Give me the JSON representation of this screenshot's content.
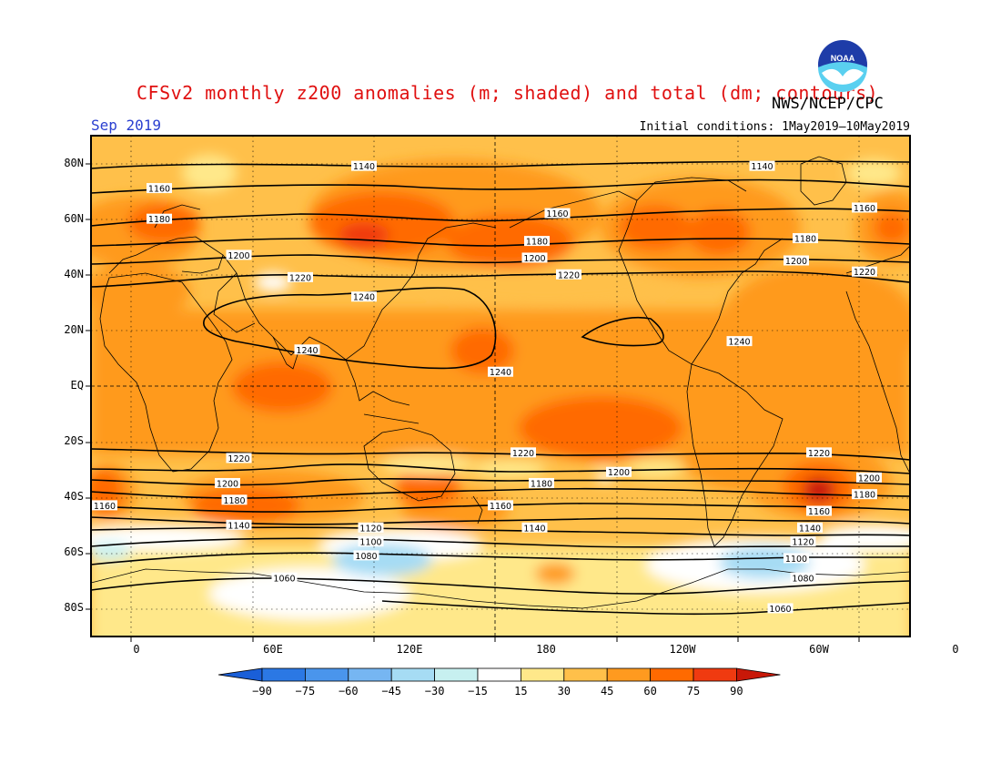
{
  "header": {
    "title": "CFSv2 monthly z200 anomalies (m; shaded) and total (dm; contours)",
    "agency": "NWS/NCEP/CPC",
    "valid_month": "Sep 2019",
    "initial_conditions": "Initial conditions: 1May2019—10May2019"
  },
  "logo": {
    "icon": "noaa-logo-icon",
    "text": "NOAA"
  },
  "axes": {
    "lat_labels": [
      "80N",
      "60N",
      "40N",
      "20N",
      "EQ",
      "20S",
      "40S",
      "60S",
      "80S"
    ],
    "lat_values": [
      80,
      60,
      40,
      20,
      0,
      -20,
      -40,
      -60,
      -80
    ],
    "lon_labels": [
      "0",
      "60E",
      "120E",
      "180",
      "120W",
      "60W",
      "0"
    ],
    "lon_values": [
      0,
      60,
      120,
      180,
      240,
      300,
      360
    ],
    "lon_range": [
      -20,
      340
    ],
    "lat_range": [
      -90,
      90
    ]
  },
  "colorbar": {
    "labels": [
      "−90",
      "−75",
      "−60",
      "−45",
      "−30",
      "−15",
      "15",
      "30",
      "45",
      "60",
      "75",
      "90"
    ],
    "colors": [
      "#1a5fd8",
      "#2b78e4",
      "#4a95ec",
      "#76b6f2",
      "#a6dcf4",
      "#c7f0f0",
      "#ffffff",
      "#ffe88a",
      "#ffc04a",
      "#ff9a1f",
      "#ff6a00",
      "#f03a10",
      "#c81808"
    ]
  },
  "contour_labels": [
    {
      "text": "1140",
      "lon": 100,
      "lat": 79
    },
    {
      "text": "1140",
      "lon": 275,
      "lat": 79
    },
    {
      "text": "1160",
      "lon": 10,
      "lat": 71
    },
    {
      "text": "1160",
      "lon": 185,
      "lat": 62
    },
    {
      "text": "1160",
      "lon": 320,
      "lat": 64
    },
    {
      "text": "1180",
      "lon": 10,
      "lat": 60
    },
    {
      "text": "1180",
      "lon": 176,
      "lat": 52
    },
    {
      "text": "1180",
      "lon": 294,
      "lat": 53
    },
    {
      "text": "1200",
      "lon": 45,
      "lat": 47
    },
    {
      "text": "1200",
      "lon": 175,
      "lat": 46
    },
    {
      "text": "1200",
      "lon": 290,
      "lat": 45
    },
    {
      "text": "1220",
      "lon": 72,
      "lat": 39
    },
    {
      "text": "1220",
      "lon": 190,
      "lat": 40
    },
    {
      "text": "1220",
      "lon": 320,
      "lat": 41
    },
    {
      "text": "1240",
      "lon": 100,
      "lat": 32
    },
    {
      "text": "1240",
      "lon": 75,
      "lat": 13
    },
    {
      "text": "1240",
      "lon": 160,
      "lat": 5
    },
    {
      "text": "1240",
      "lon": 265,
      "lat": 16
    },
    {
      "text": "1220",
      "lon": 45,
      "lat": -26
    },
    {
      "text": "1220",
      "lon": 170,
      "lat": -24
    },
    {
      "text": "1220",
      "lon": 300,
      "lat": -24
    },
    {
      "text": "1200",
      "lon": 40,
      "lat": -35
    },
    {
      "text": "1200",
      "lon": 212,
      "lat": -31
    },
    {
      "text": "1200",
      "lon": 322,
      "lat": -33
    },
    {
      "text": "1180",
      "lon": 43,
      "lat": -41
    },
    {
      "text": "1180",
      "lon": 178,
      "lat": -35
    },
    {
      "text": "1180",
      "lon": 320,
      "lat": -39
    },
    {
      "text": "1160",
      "lon": -14,
      "lat": -43
    },
    {
      "text": "1160",
      "lon": 160,
      "lat": -43
    },
    {
      "text": "1160",
      "lon": 300,
      "lat": -45
    },
    {
      "text": "1140",
      "lon": 45,
      "lat": -50
    },
    {
      "text": "1140",
      "lon": 175,
      "lat": -51
    },
    {
      "text": "1140",
      "lon": 296,
      "lat": -51
    },
    {
      "text": "1120",
      "lon": 103,
      "lat": -51
    },
    {
      "text": "1120",
      "lon": 293,
      "lat": -56
    },
    {
      "text": "1100",
      "lon": 103,
      "lat": -56
    },
    {
      "text": "1100",
      "lon": 290,
      "lat": -62
    },
    {
      "text": "1080",
      "lon": 101,
      "lat": -61
    },
    {
      "text": "1080",
      "lon": 293,
      "lat": -69
    },
    {
      "text": "1060",
      "lon": 65,
      "lat": -69
    },
    {
      "text": "1060",
      "lon": 283,
      "lat": -80
    }
  ]
}
